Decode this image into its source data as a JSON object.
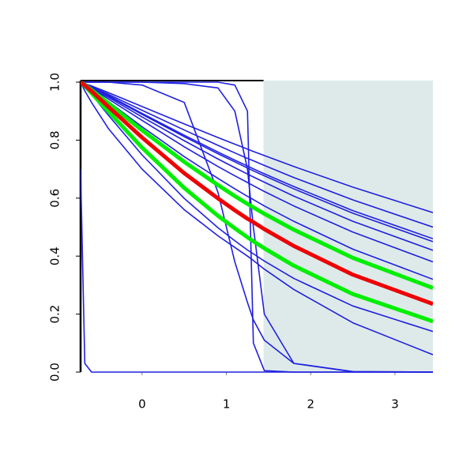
{
  "chart_data": {
    "type": "line",
    "x": [
      -0.73,
      -0.68,
      -0.6,
      -0.4,
      0,
      0.5,
      0.9,
      1.1,
      1.25,
      1.32,
      1.45,
      1.8,
      2.5,
      3.45
    ],
    "xlim": [
      -0.73,
      3.45
    ],
    "ylim": [
      0,
      1
    ],
    "xticks": [
      0,
      1,
      2,
      3
    ],
    "yticks": [
      {
        "value": 0,
        "label": "0.0"
      },
      0.2,
      0.4,
      0.6,
      0.8,
      {
        "value": 1,
        "label": "1.0"
      }
    ],
    "shaded_region": {
      "xmin": 1.44,
      "color": "#deeaea"
    },
    "series": [
      {
        "color": "#2020e0",
        "line_width": 1.6,
        "values": [
          1,
          0.995,
          0.987,
          0.964,
          0.916,
          0.856,
          0.809,
          0.786,
          0.769,
          0.761,
          0.747,
          0.709,
          0.638,
          0.55
        ]
      },
      {
        "color": "#2020e0",
        "line_width": 1.6,
        "values": [
          1,
          0.995,
          0.985,
          0.958,
          0.903,
          0.835,
          0.782,
          0.756,
          0.737,
          0.729,
          0.713,
          0.671,
          0.594,
          0.5
        ]
      },
      {
        "color": "#2020e0",
        "line_width": 1.6,
        "values": [
          1,
          0.994,
          0.983,
          0.954,
          0.892,
          0.817,
          0.759,
          0.731,
          0.711,
          0.701,
          0.684,
          0.64,
          0.557,
          0.46
        ]
      },
      {
        "color": "#2020e0",
        "line_width": 1.6,
        "values": [
          1,
          0.994,
          0.983,
          0.952,
          0.889,
          0.812,
          0.753,
          0.725,
          0.704,
          0.694,
          0.677,
          0.632,
          0.548,
          0.45
        ]
      },
      {
        "color": "#2020e0",
        "line_width": 1.6,
        "values": [
          1,
          0.993,
          0.981,
          0.948,
          0.88,
          0.798,
          0.735,
          0.705,
          0.683,
          0.673,
          0.655,
          0.607,
          0.52,
          0.42
        ]
      },
      {
        "color": "#2020e0",
        "line_width": 1.6,
        "values": [
          1,
          0.993,
          0.979,
          0.942,
          0.868,
          0.777,
          0.709,
          0.677,
          0.654,
          0.643,
          0.623,
          0.573,
          0.483,
          0.38
        ]
      },
      {
        "color": "#2020e0",
        "line_width": 1.6,
        "values": [
          1,
          0.991,
          0.975,
          0.933,
          0.846,
          0.743,
          0.668,
          0.632,
          0.606,
          0.595,
          0.573,
          0.52,
          0.424,
          0.32
        ]
      },
      {
        "color": "#2020e0",
        "line_width": 1.6,
        "values": [
          1,
          0.985,
          0.958,
          0.886,
          0.749,
          0.599,
          0.498,
          0.453,
          0.421,
          0.408,
          0.383,
          0.323,
          0.228,
          0.14
        ]
      },
      {
        "color": "#2020e0",
        "line_width": 1.6,
        "values": [
          1,
          0.97,
          0.93,
          0.84,
          0.7,
          0.56,
          0.47,
          0.43,
          0.4,
          0.385,
          0.355,
          0.285,
          0.17,
          0.06
        ]
      },
      {
        "color": "#2020e0",
        "line_width": 1.6,
        "values": [
          0.7,
          0.03,
          0,
          0,
          0,
          0,
          0,
          0,
          0,
          0,
          0,
          0,
          0,
          0
        ]
      },
      {
        "color": "#2020e0",
        "line_width": 1.6,
        "values": [
          1,
          1,
          1,
          1,
          1,
          1,
          1,
          0.99,
          0.9,
          0.1,
          0.005,
          0,
          0,
          0
        ]
      },
      {
        "color": "#2020e0",
        "line_width": 1.6,
        "values": [
          1,
          1,
          1,
          1,
          0.99,
          0.93,
          0.62,
          0.38,
          0.24,
          0.18,
          0.11,
          0.03,
          0.002,
          0
        ]
      },
      {
        "color": "#2020e0",
        "line_width": 1.6,
        "values": [
          1,
          1,
          1,
          1,
          1,
          0.995,
          0.98,
          0.9,
          0.7,
          0.5,
          0.2,
          0.03,
          0.001,
          0
        ]
      },
      {
        "color": "#00ee00",
        "line_width": 5,
        "values": [
          1,
          0.991,
          0.973,
          0.927,
          0.834,
          0.725,
          0.645,
          0.607,
          0.58,
          0.568,
          0.546,
          0.491,
          0.394,
          0.29
        ]
      },
      {
        "color": "#00ee00",
        "line_width": 5,
        "values": [
          1,
          0.987,
          0.962,
          0.899,
          0.774,
          0.635,
          0.539,
          0.496,
          0.465,
          0.451,
          0.427,
          0.367,
          0.269,
          0.175
        ]
      },
      {
        "color": "#ee0000",
        "line_width": 5,
        "values": [
          1,
          0.989,
          0.969,
          0.915,
          0.809,
          0.686,
          0.599,
          0.558,
          0.529,
          0.517,
          0.493,
          0.435,
          0.336,
          0.235
        ]
      }
    ]
  }
}
